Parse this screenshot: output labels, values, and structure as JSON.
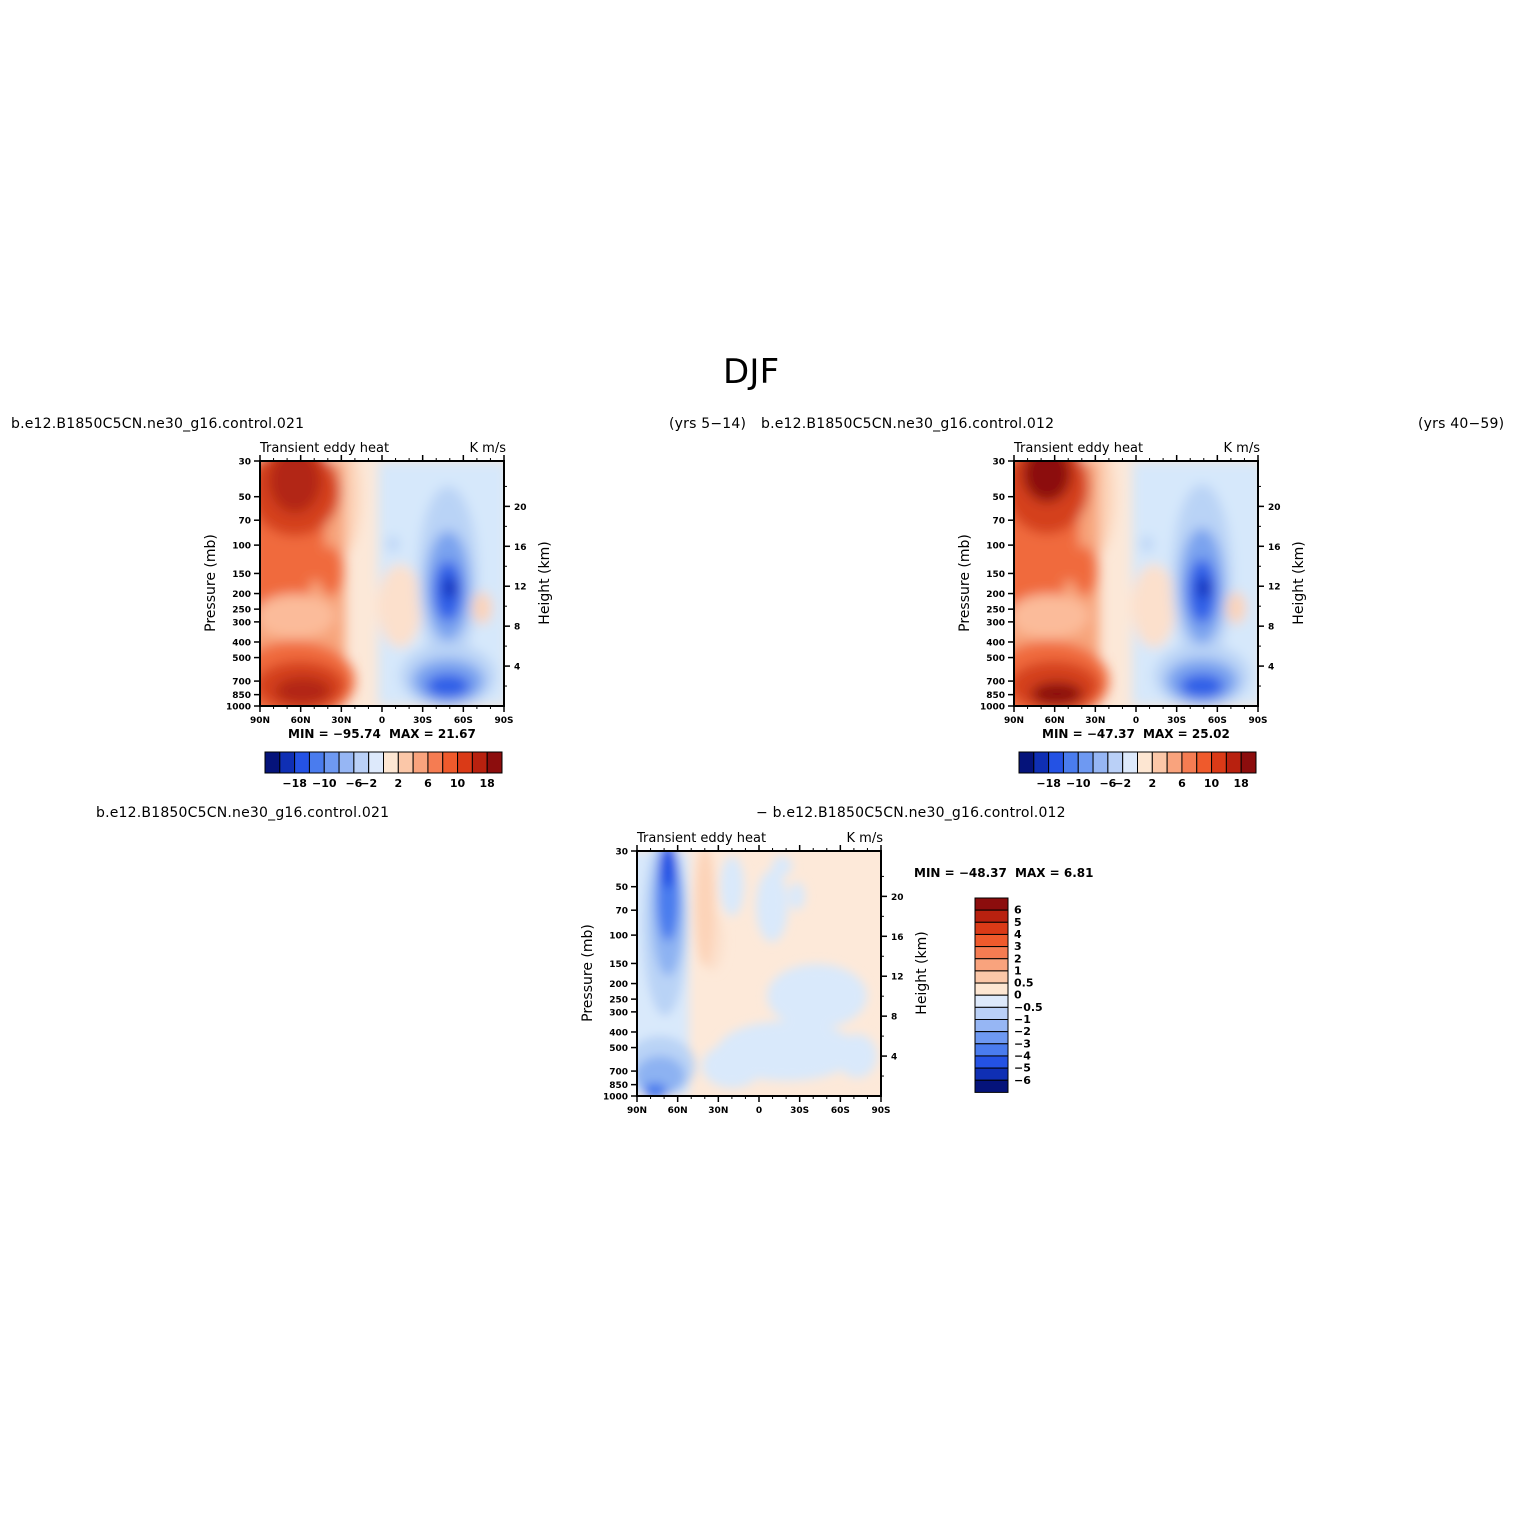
{
  "page": {
    "title": "DJF",
    "panel1_case": "b.e12.B1850C5CN.ne30_g16.control.021",
    "panel1_years": "(yrs 5−14)",
    "panel2_case": "b.e12.B1850C5CN.ne30_g16.control.012",
    "panel2_years": "(yrs 40−59)",
    "panel3_left": "b.e12.B1850C5CN.ne30_g16.control.021",
    "panel3_right": "− b.e12.B1850C5CN.ne30_g16.control.012"
  },
  "chart_data": [
    {
      "type": "contour",
      "variable_label": "Transient eddy heat",
      "units": "K m/s",
      "xlabel": "",
      "ylabel": "Pressure (mb)",
      "ylabel_right": "Height (km)",
      "x_ticks": [
        "90N",
        "60N",
        "30N",
        "0",
        "30S",
        "60S",
        "90S"
      ],
      "y_ticks": [
        "30",
        "50",
        "70",
        "100",
        "150",
        "200",
        "250",
        "300",
        "400",
        "500",
        "700",
        "850",
        "1000"
      ],
      "height_ticks": [
        "20",
        "16",
        "12",
        "8",
        "4"
      ],
      "min_label": "MIN = −95.74",
      "max_label": "MAX =   21.67",
      "min": -95.74,
      "max": 21.67,
      "colorbar_labels": [
        "−18",
        "−10",
        "−6",
        "−2",
        "2",
        "6",
        "10",
        "18"
      ]
    },
    {
      "type": "contour",
      "variable_label": "Transient eddy heat",
      "units": "K m/s",
      "xlabel": "",
      "ylabel": "Pressure (mb)",
      "ylabel_right": "Height (km)",
      "x_ticks": [
        "90N",
        "60N",
        "30N",
        "0",
        "30S",
        "60S",
        "90S"
      ],
      "y_ticks": [
        "30",
        "50",
        "70",
        "100",
        "150",
        "200",
        "250",
        "300",
        "400",
        "500",
        "700",
        "850",
        "1000"
      ],
      "height_ticks": [
        "20",
        "16",
        "12",
        "8",
        "4"
      ],
      "min_label": "MIN = −47.37",
      "max_label": "MAX =   25.02",
      "min": -47.37,
      "max": 25.02,
      "colorbar_labels": [
        "−18",
        "−10",
        "−6",
        "−2",
        "2",
        "6",
        "10",
        "18"
      ]
    },
    {
      "type": "contour",
      "variable_label": "Transient eddy heat",
      "units": "K m/s",
      "xlabel": "",
      "ylabel": "Pressure (mb)",
      "ylabel_right": "Height (km)",
      "x_ticks": [
        "90N",
        "60N",
        "30N",
        "0",
        "30S",
        "60S",
        "90S"
      ],
      "y_ticks": [
        "30",
        "50",
        "70",
        "100",
        "150",
        "200",
        "250",
        "300",
        "400",
        "500",
        "700",
        "850",
        "1000"
      ],
      "height_ticks": [
        "20",
        "16",
        "12",
        "8",
        "4"
      ],
      "min_label": "MIN = −48.37",
      "max_label": "MAX =    6.81",
      "min": -48.37,
      "max": 6.81,
      "colorbar_labels": [
        "6",
        "5",
        "4",
        "3",
        "2",
        "1",
        "0.5",
        "0",
        "−0.5",
        "−1",
        "−2",
        "−3",
        "−4",
        "−5",
        "−6"
      ]
    }
  ]
}
